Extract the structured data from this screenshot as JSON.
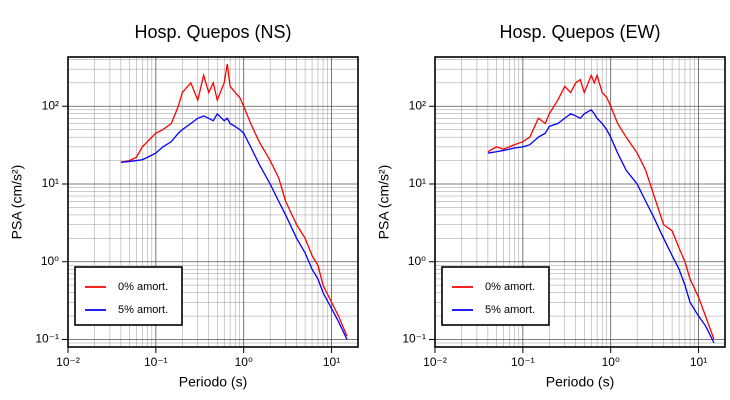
{
  "chart_data": [
    {
      "type": "line",
      "title": "Hosp. Quepos (NS)",
      "x_label": "Periodo (s)",
      "y_label": "PSA (cm/s²)",
      "x_scale": "log",
      "y_scale": "log",
      "grid": true,
      "legend": "lower left",
      "xlim": [
        0.01,
        20
      ],
      "ylim": [
        0.08,
        430
      ],
      "xticks": [
        {
          "value": 0.01,
          "label": "10⁻²"
        },
        {
          "value": 0.1,
          "label": "10⁻¹"
        },
        {
          "value": 1,
          "label": "10⁰"
        },
        {
          "value": 10,
          "label": "10¹"
        }
      ],
      "yticks": [
        {
          "value": 0.1,
          "label": "10⁻¹"
        },
        {
          "value": 1,
          "label": "10⁰"
        },
        {
          "value": 10,
          "label": "10¹"
        },
        {
          "value": 100,
          "label": "10²"
        }
      ],
      "x": [
        0.04,
        0.05,
        0.06,
        0.07,
        0.08,
        0.1,
        0.12,
        0.15,
        0.18,
        0.2,
        0.25,
        0.3,
        0.35,
        0.4,
        0.45,
        0.5,
        0.6,
        0.65,
        0.7,
        0.8,
        0.9,
        1,
        1.2,
        1.5,
        2,
        2.5,
        3,
        4,
        5,
        6,
        7,
        8,
        10,
        12,
        15
      ],
      "series": [
        {
          "name": "0% amort.",
          "color": "#ff0000",
          "values": [
            19,
            20,
            22,
            30,
            35,
            45,
            50,
            60,
            100,
            150,
            200,
            120,
            250,
            150,
            200,
            120,
            200,
            350,
            180,
            150,
            130,
            100,
            60,
            35,
            20,
            12,
            6,
            3,
            2,
            1.2,
            0.9,
            0.5,
            0.3,
            0.2,
            0.11
          ]
        },
        {
          "name": "5% amort.",
          "color": "#0000ff",
          "values": [
            19,
            19.5,
            20,
            20.5,
            22,
            25,
            30,
            35,
            45,
            50,
            60,
            70,
            75,
            70,
            65,
            80,
            65,
            70,
            60,
            55,
            50,
            45,
            30,
            18,
            10,
            6,
            4,
            2,
            1.3,
            0.8,
            0.6,
            0.4,
            0.25,
            0.17,
            0.1
          ]
        }
      ]
    },
    {
      "type": "line",
      "title": "Hosp. Quepos (EW)",
      "x_label": "Periodo (s)",
      "y_label": "PSA (cm/s²)",
      "x_scale": "log",
      "y_scale": "log",
      "grid": true,
      "legend": "lower left",
      "xlim": [
        0.01,
        20
      ],
      "ylim": [
        0.08,
        430
      ],
      "xticks": [
        {
          "value": 0.01,
          "label": "10⁻²"
        },
        {
          "value": 0.1,
          "label": "10⁻¹"
        },
        {
          "value": 1,
          "label": "10⁰"
        },
        {
          "value": 10,
          "label": "10¹"
        }
      ],
      "yticks": [
        {
          "value": 0.1,
          "label": "10⁻¹"
        },
        {
          "value": 1,
          "label": "10⁰"
        },
        {
          "value": 10,
          "label": "10¹"
        },
        {
          "value": 100,
          "label": "10²"
        }
      ],
      "x": [
        0.04,
        0.05,
        0.06,
        0.07,
        0.08,
        0.1,
        0.12,
        0.15,
        0.18,
        0.2,
        0.25,
        0.3,
        0.35,
        0.4,
        0.45,
        0.5,
        0.6,
        0.65,
        0.7,
        0.8,
        0.9,
        1,
        1.2,
        1.5,
        2,
        2.5,
        3,
        4,
        5,
        6,
        7,
        8,
        10,
        12,
        15
      ],
      "series": [
        {
          "name": "0% amort.",
          "color": "#ff0000",
          "values": [
            26,
            30,
            28,
            30,
            32,
            35,
            40,
            70,
            60,
            80,
            120,
            180,
            150,
            200,
            220,
            150,
            250,
            200,
            250,
            150,
            130,
            100,
            60,
            40,
            25,
            15,
            8,
            3,
            2.5,
            1.5,
            1,
            0.6,
            0.35,
            0.2,
            0.1
          ]
        },
        {
          "name": "5% amort.",
          "color": "#0000ff",
          "values": [
            25,
            26,
            27,
            28,
            29,
            30,
            32,
            40,
            45,
            55,
            60,
            70,
            80,
            75,
            70,
            80,
            90,
            80,
            70,
            60,
            50,
            40,
            25,
            15,
            10,
            6,
            4,
            2,
            1.2,
            0.8,
            0.5,
            0.3,
            0.2,
            0.15,
            0.09
          ]
        }
      ]
    }
  ]
}
